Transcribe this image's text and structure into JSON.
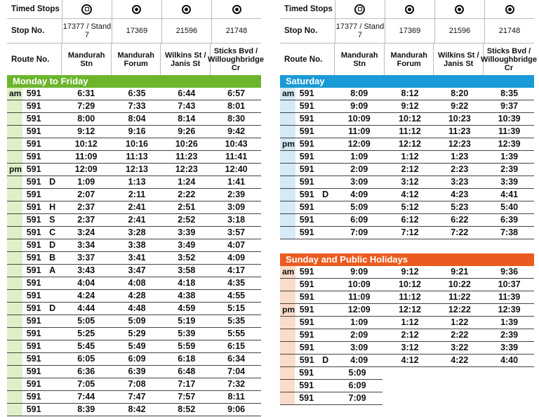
{
  "left_table": {
    "headers": {
      "timed_stops": "Timed Stops",
      "stop_no": "Stop No.",
      "route_no": "Route No.",
      "stop_numbers": [
        "17377 / Stand 7",
        "17369",
        "21596",
        "21748"
      ],
      "stop_names": [
        "Mandurah Stn",
        "Mandurah Forum",
        "Wilkins St / Janis St",
        "Sticks Bvd / Willoughbridge Cr"
      ],
      "icons": [
        "bus-station-icon",
        "timing-point-icon",
        "timing-point-icon",
        "timing-point-icon"
      ]
    },
    "section": {
      "title": "Monday to Friday",
      "color": "#6cb52d",
      "tint": "#dff0c8",
      "rows": [
        {
          "period": "am",
          "route": "591",
          "var": "",
          "times": [
            "6:31",
            "6:35",
            "6:44",
            "6:57"
          ]
        },
        {
          "period": "",
          "route": "591",
          "var": "",
          "times": [
            "7:29",
            "7:33",
            "7:43",
            "8:01"
          ]
        },
        {
          "period": "",
          "route": "591",
          "var": "",
          "times": [
            "8:00",
            "8:04",
            "8:14",
            "8:30"
          ]
        },
        {
          "period": "",
          "route": "591",
          "var": "",
          "times": [
            "9:12",
            "9:16",
            "9:26",
            "9:42"
          ]
        },
        {
          "period": "",
          "route": "591",
          "var": "",
          "times": [
            "10:12",
            "10:16",
            "10:26",
            "10:43"
          ]
        },
        {
          "period": "",
          "route": "591",
          "var": "",
          "times": [
            "11:09",
            "11:13",
            "11:23",
            "11:41"
          ]
        },
        {
          "period": "pm",
          "route": "591",
          "var": "",
          "times": [
            "12:09",
            "12:13",
            "12:23",
            "12:40"
          ]
        },
        {
          "period": "",
          "route": "591",
          "var": "D",
          "times": [
            "1:09",
            "1:13",
            "1:24",
            "1:41"
          ]
        },
        {
          "period": "",
          "route": "591",
          "var": "",
          "times": [
            "2:07",
            "2:11",
            "2:22",
            "2:39"
          ]
        },
        {
          "period": "",
          "route": "591",
          "var": "H",
          "times": [
            "2:37",
            "2:41",
            "2:51",
            "3:09"
          ]
        },
        {
          "period": "",
          "route": "591",
          "var": "S",
          "times": [
            "2:37",
            "2:41",
            "2:52",
            "3:18"
          ]
        },
        {
          "period": "",
          "route": "591",
          "var": "C",
          "times": [
            "3:24",
            "3:28",
            "3:39",
            "3:57"
          ]
        },
        {
          "period": "",
          "route": "591",
          "var": "D",
          "times": [
            "3:34",
            "3:38",
            "3:49",
            "4:07"
          ]
        },
        {
          "period": "",
          "route": "591",
          "var": "B",
          "times": [
            "3:37",
            "3:41",
            "3:52",
            "4:09"
          ]
        },
        {
          "period": "",
          "route": "591",
          "var": "A",
          "times": [
            "3:43",
            "3:47",
            "3:58",
            "4:17"
          ]
        },
        {
          "period": "",
          "route": "591",
          "var": "",
          "times": [
            "4:04",
            "4:08",
            "4:18",
            "4:35"
          ]
        },
        {
          "period": "",
          "route": "591",
          "var": "",
          "times": [
            "4:24",
            "4:28",
            "4:38",
            "4:55"
          ]
        },
        {
          "period": "",
          "route": "591",
          "var": "D",
          "times": [
            "4:44",
            "4:48",
            "4:59",
            "5:15"
          ]
        },
        {
          "period": "",
          "route": "591",
          "var": "",
          "times": [
            "5:05",
            "5:09",
            "5:19",
            "5:35"
          ]
        },
        {
          "period": "",
          "route": "591",
          "var": "",
          "times": [
            "5:25",
            "5:29",
            "5:39",
            "5:55"
          ]
        },
        {
          "period": "",
          "route": "591",
          "var": "",
          "times": [
            "5:45",
            "5:49",
            "5:59",
            "6:15"
          ]
        },
        {
          "period": "",
          "route": "591",
          "var": "",
          "times": [
            "6:05",
            "6:09",
            "6:18",
            "6:34"
          ]
        },
        {
          "period": "",
          "route": "591",
          "var": "",
          "times": [
            "6:36",
            "6:39",
            "6:48",
            "7:04"
          ]
        },
        {
          "period": "",
          "route": "591",
          "var": "",
          "times": [
            "7:05",
            "7:08",
            "7:17",
            "7:32"
          ]
        },
        {
          "period": "",
          "route": "591",
          "var": "",
          "times": [
            "7:44",
            "7:47",
            "7:57",
            "8:11"
          ]
        },
        {
          "period": "",
          "route": "591",
          "var": "",
          "times": [
            "8:39",
            "8:42",
            "8:52",
            "9:06"
          ]
        }
      ]
    }
  },
  "right_table": {
    "headers": {
      "timed_stops": "Timed Stops",
      "stop_no": "Stop No.",
      "route_no": "Route No.",
      "stop_numbers": [
        "17377 / Stand 7",
        "17369",
        "21596",
        "21748"
      ],
      "stop_names": [
        "Mandurah Stn",
        "Mandurah Forum",
        "Wilkins St / Janis St",
        "Sticks Bvd / Willoughbridge Cr"
      ],
      "icons": [
        "bus-station-icon",
        "timing-point-icon",
        "timing-point-icon",
        "timing-point-icon"
      ]
    },
    "saturday": {
      "title": "Saturday",
      "color": "#1a9ad6",
      "tint": "#d4eaf6",
      "rows": [
        {
          "period": "am",
          "route": "591",
          "var": "",
          "times": [
            "8:09",
            "8:12",
            "8:20",
            "8:35"
          ]
        },
        {
          "period": "",
          "route": "591",
          "var": "",
          "times": [
            "9:09",
            "9:12",
            "9:22",
            "9:37"
          ]
        },
        {
          "period": "",
          "route": "591",
          "var": "",
          "times": [
            "10:09",
            "10:12",
            "10:23",
            "10:39"
          ]
        },
        {
          "period": "",
          "route": "591",
          "var": "",
          "times": [
            "11:09",
            "11:12",
            "11:23",
            "11:39"
          ]
        },
        {
          "period": "pm",
          "route": "591",
          "var": "",
          "times": [
            "12:09",
            "12:12",
            "12:23",
            "12:39"
          ]
        },
        {
          "period": "",
          "route": "591",
          "var": "",
          "times": [
            "1:09",
            "1:12",
            "1:23",
            "1:39"
          ]
        },
        {
          "period": "",
          "route": "591",
          "var": "",
          "times": [
            "2:09",
            "2:12",
            "2:23",
            "2:39"
          ]
        },
        {
          "period": "",
          "route": "591",
          "var": "",
          "times": [
            "3:09",
            "3:12",
            "3:23",
            "3:39"
          ]
        },
        {
          "period": "",
          "route": "591",
          "var": "D",
          "times": [
            "4:09",
            "4:12",
            "4:23",
            "4:41"
          ]
        },
        {
          "period": "",
          "route": "591",
          "var": "",
          "times": [
            "5:09",
            "5:12",
            "5:23",
            "5:40"
          ]
        },
        {
          "period": "",
          "route": "591",
          "var": "",
          "times": [
            "6:09",
            "6:12",
            "6:22",
            "6:39"
          ]
        },
        {
          "period": "",
          "route": "591",
          "var": "",
          "times": [
            "7:09",
            "7:12",
            "7:22",
            "7:38"
          ]
        }
      ]
    },
    "sunday": {
      "title": "Sunday and Public Holidays",
      "color": "#ea5b1f",
      "tint": "#fbdccb",
      "rows": [
        {
          "period": "am",
          "route": "591",
          "var": "",
          "times": [
            "9:09",
            "9:12",
            "9:21",
            "9:36"
          ]
        },
        {
          "period": "",
          "route": "591",
          "var": "",
          "times": [
            "10:09",
            "10:12",
            "10:22",
            "10:37"
          ]
        },
        {
          "period": "",
          "route": "591",
          "var": "",
          "times": [
            "11:09",
            "11:12",
            "11:22",
            "11:39"
          ]
        },
        {
          "period": "pm",
          "route": "591",
          "var": "",
          "times": [
            "12:09",
            "12:12",
            "12:22",
            "12:39"
          ]
        },
        {
          "period": "",
          "route": "591",
          "var": "",
          "times": [
            "1:09",
            "1:12",
            "1:22",
            "1:39"
          ]
        },
        {
          "period": "",
          "route": "591",
          "var": "",
          "times": [
            "2:09",
            "2:12",
            "2:22",
            "2:39"
          ]
        },
        {
          "period": "",
          "route": "591",
          "var": "",
          "times": [
            "3:09",
            "3:12",
            "3:22",
            "3:39"
          ]
        },
        {
          "period": "",
          "route": "591",
          "var": "D",
          "times": [
            "4:09",
            "4:12",
            "4:22",
            "4:40"
          ]
        }
      ],
      "overflow_rows": [
        {
          "route": "591",
          "time": "5:09"
        },
        {
          "route": "591",
          "time": "6:09"
        },
        {
          "route": "591",
          "time": "7:09"
        }
      ]
    }
  }
}
